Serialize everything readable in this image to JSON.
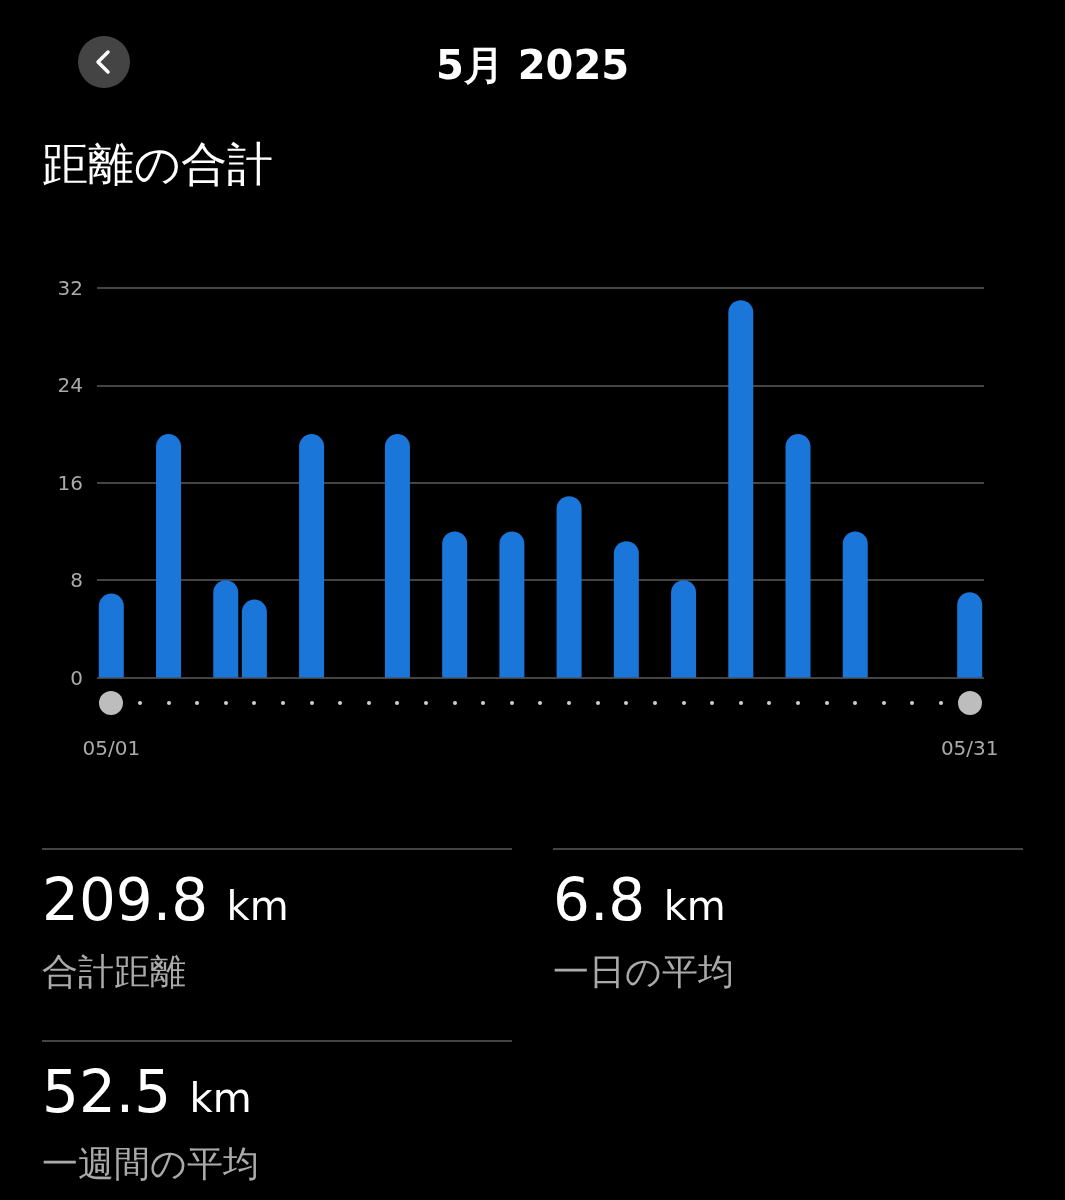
{
  "chart_data": {
    "type": "bar",
    "title": "5月 2025",
    "subtitle": "距離の合計",
    "categories": [
      "05/01",
      null,
      null,
      null,
      null,
      null,
      null,
      null,
      null,
      null,
      null,
      null,
      null,
      null,
      null,
      null,
      null,
      null,
      null,
      null,
      null,
      null,
      null,
      null,
      null,
      null,
      null,
      null,
      null,
      null,
      "05/31"
    ],
    "values": [
      6.9,
      null,
      20,
      null,
      8,
      6.4,
      null,
      20,
      null,
      null,
      20,
      null,
      12,
      null,
      12,
      null,
      14.9,
      null,
      11.2,
      null,
      8,
      null,
      31,
      null,
      20,
      null,
      12,
      null,
      null,
      null,
      7
    ],
    "color": "#1a76d8",
    "ylim": [
      0,
      32
    ],
    "yticks": [
      0,
      8,
      16,
      24,
      32
    ],
    "grid": "y",
    "annotations": [
      "209.8 km",
      "合計距離",
      "6.8 km",
      "一日の平均",
      "52.5 km",
      "一週間の平均"
    ]
  }
}
